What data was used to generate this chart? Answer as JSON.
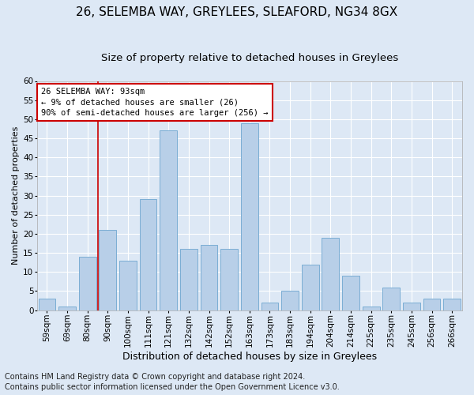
{
  "title_line1": "26, SELEMBA WAY, GREYLEES, SLEAFORD, NG34 8GX",
  "title_line2": "Size of property relative to detached houses in Greylees",
  "xlabel": "Distribution of detached houses by size in Greylees",
  "ylabel": "Number of detached properties",
  "footer_line1": "Contains HM Land Registry data © Crown copyright and database right 2024.",
  "footer_line2": "Contains public sector information licensed under the Open Government Licence v3.0.",
  "categories": [
    "59sqm",
    "69sqm",
    "80sqm",
    "90sqm",
    "100sqm",
    "111sqm",
    "121sqm",
    "132sqm",
    "142sqm",
    "152sqm",
    "163sqm",
    "173sqm",
    "183sqm",
    "194sqm",
    "204sqm",
    "214sqm",
    "225sqm",
    "235sqm",
    "245sqm",
    "256sqm",
    "266sqm"
  ],
  "values": [
    3,
    1,
    14,
    21,
    13,
    29,
    47,
    16,
    17,
    16,
    49,
    2,
    5,
    12,
    19,
    9,
    1,
    6,
    2,
    3,
    3
  ],
  "bar_color": "#b8cfe8",
  "bar_edge_color": "#7aadd4",
  "vline_x_index": 2.5,
  "vline_color": "#cc0000",
  "annotation_text": "26 SELEMBA WAY: 93sqm\n← 9% of detached houses are smaller (26)\n90% of semi-detached houses are larger (256) →",
  "annotation_box_color": "white",
  "annotation_box_edge_color": "#cc0000",
  "ylim": [
    0,
    60
  ],
  "yticks": [
    0,
    5,
    10,
    15,
    20,
    25,
    30,
    35,
    40,
    45,
    50,
    55,
    60
  ],
  "background_color": "#dde8f5",
  "plot_bg_color": "#dde8f5",
  "grid_color": "white",
  "title1_fontsize": 11,
  "title2_fontsize": 9.5,
  "xlabel_fontsize": 9,
  "ylabel_fontsize": 8,
  "tick_fontsize": 7.5,
  "footer_fontsize": 7,
  "ann_fontsize": 7.5
}
